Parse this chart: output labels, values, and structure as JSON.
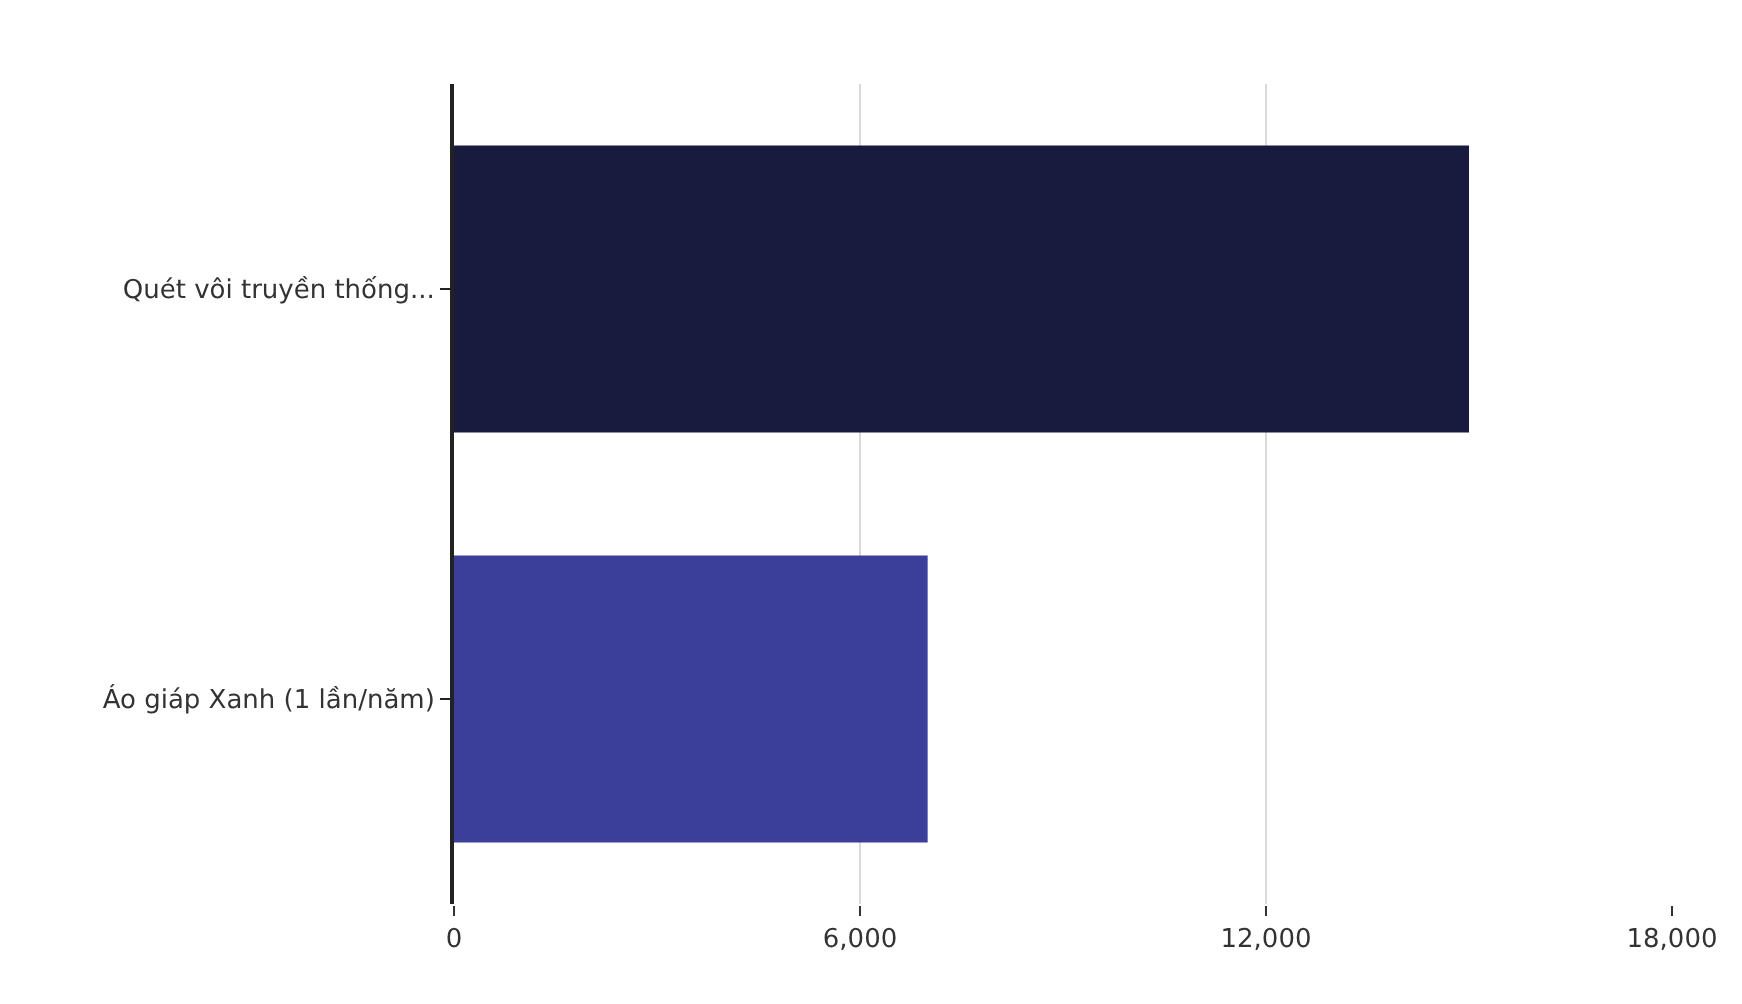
{
  "chart_data": {
    "type": "bar",
    "orientation": "horizontal",
    "categories": [
      "Quét vôi truyền thống...",
      "Áo giáp Xanh (1 lần/năm)"
    ],
    "values": [
      15000,
      7000
    ],
    "colors": [
      "#181a3e",
      "#3c3f9a"
    ],
    "xlim": [
      0,
      18000
    ],
    "xticks": [
      0,
      {
        "value": 6000,
        "label": "6,000"
      },
      {
        "value": 12000,
        "label": "12,000"
      },
      {
        "value": 18000,
        "label": "18,000"
      }
    ],
    "grid": "x",
    "legend": false
  }
}
